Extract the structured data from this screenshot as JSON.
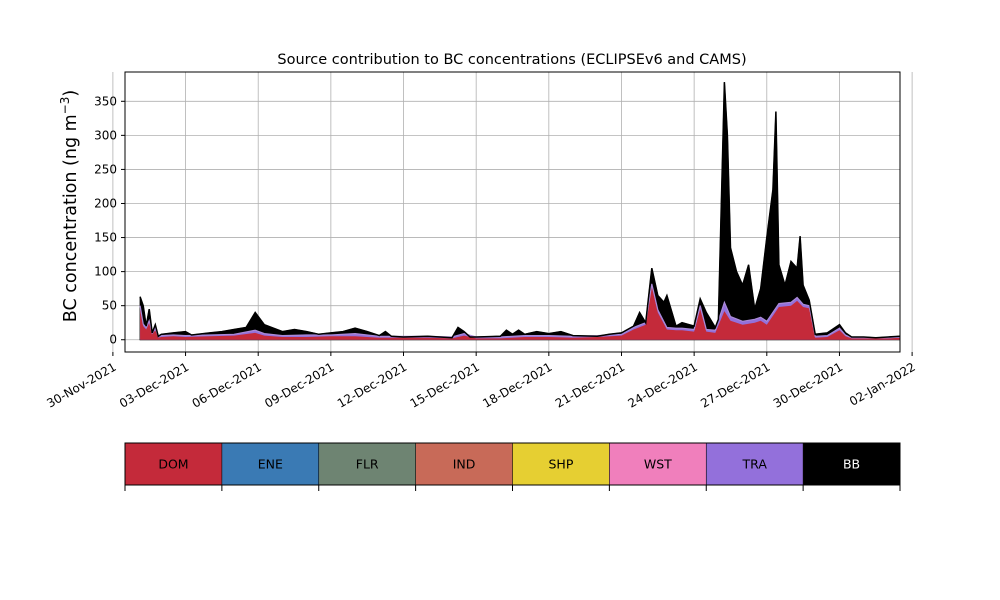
{
  "chart_data": {
    "type": "area",
    "stacked": true,
    "title": "Source contribution to BC concentrations (ECLIPSEv6 and CAMS)",
    "ylabel_main": "BC concentration (ng m",
    "ylabel_sup": "−3",
    "ylabel_close": ")",
    "ylim": [
      -18,
      393
    ],
    "yticks": [
      0,
      50,
      100,
      150,
      200,
      250,
      300,
      350
    ],
    "xlim": [
      "2021-11-30T12:00",
      "2022-01-01T12:00"
    ],
    "xticks": [
      "2021-11-30",
      "2021-12-03",
      "2021-12-06",
      "2021-12-09",
      "2021-12-12",
      "2021-12-15",
      "2021-12-18",
      "2021-12-21",
      "2021-12-24",
      "2021-12-27",
      "2021-12-30",
      "2022-01-02"
    ],
    "xtick_labels": [
      "30-Nov-2021",
      "03-Dec-2021",
      "06-Dec-2021",
      "09-Dec-2021",
      "12-Dec-2021",
      "15-Dec-2021",
      "18-Dec-2021",
      "21-Dec-2021",
      "24-Dec-2021",
      "27-Dec-2021",
      "30-Dec-2021",
      "02-Jan-2022"
    ],
    "grid": true,
    "series_colors": {
      "DOM": "#c42a3a",
      "TRA": "#9370db",
      "BB": "#000000"
    },
    "dom_points": [
      [
        "2021-12-01T03:00",
        45
      ],
      [
        "2021-12-01T06:00",
        20
      ],
      [
        "2021-12-01T09:00",
        15
      ],
      [
        "2021-12-01T12:00",
        25
      ],
      [
        "2021-12-01T15:00",
        8
      ],
      [
        "2021-12-01T18:00",
        14
      ],
      [
        "2021-12-01T21:00",
        3
      ],
      [
        "2021-12-02T00:00",
        4
      ],
      [
        "2021-12-02T12:00",
        5
      ],
      [
        "2021-12-03T00:00",
        4
      ],
      [
        "2021-12-04T00:00",
        5
      ],
      [
        "2021-12-05T00:00",
        6
      ],
      [
        "2021-12-05T21:00",
        10
      ],
      [
        "2021-12-06T06:00",
        6
      ],
      [
        "2021-12-07T00:00",
        4
      ],
      [
        "2021-12-08T00:00",
        4
      ],
      [
        "2021-12-09T00:00",
        5
      ],
      [
        "2021-12-10T00:00",
        5
      ],
      [
        "2021-12-11T00:00",
        3
      ],
      [
        "2021-12-12T00:00",
        3
      ],
      [
        "2021-12-13T00:00",
        3
      ],
      [
        "2021-12-14T00:00",
        2
      ],
      [
        "2021-12-14T12:00",
        6
      ],
      [
        "2021-12-15T00:00",
        2
      ],
      [
        "2021-12-16T00:00",
        2
      ],
      [
        "2021-12-17T00:00",
        4
      ],
      [
        "2021-12-18T00:00",
        4
      ],
      [
        "2021-12-19T00:00",
        3
      ],
      [
        "2021-12-20T00:00",
        4
      ],
      [
        "2021-12-21T00:00",
        6
      ],
      [
        "2021-12-21T12:00",
        15
      ],
      [
        "2021-12-22T00:00",
        22
      ],
      [
        "2021-12-22T06:00",
        78
      ],
      [
        "2021-12-22T12:00",
        40
      ],
      [
        "2021-12-22T21:00",
        15
      ],
      [
        "2021-12-23T06:00",
        14
      ],
      [
        "2021-12-23T12:00",
        14
      ],
      [
        "2021-12-24T00:00",
        12
      ],
      [
        "2021-12-24T06:00",
        45
      ],
      [
        "2021-12-24T12:00",
        12
      ],
      [
        "2021-12-24T21:00",
        10
      ],
      [
        "2021-12-25T06:00",
        42
      ],
      [
        "2021-12-25T12:00",
        28
      ],
      [
        "2021-12-26T00:00",
        22
      ],
      [
        "2021-12-26T12:00",
        25
      ],
      [
        "2021-12-26T18:00",
        28
      ],
      [
        "2021-12-27T00:00",
        22
      ],
      [
        "2021-12-27T12:00",
        48
      ],
      [
        "2021-12-28T00:00",
        50
      ],
      [
        "2021-12-28T06:00",
        57
      ],
      [
        "2021-12-28T12:00",
        48
      ],
      [
        "2021-12-28T18:00",
        46
      ],
      [
        "2021-12-29T00:00",
        3
      ],
      [
        "2021-12-29T12:00",
        4
      ],
      [
        "2021-12-30T00:00",
        14
      ],
      [
        "2021-12-30T06:00",
        5
      ],
      [
        "2021-12-30T12:00",
        2
      ],
      [
        "2021-12-31T00:00",
        2
      ],
      [
        "2022-01-01T00:00",
        2
      ],
      [
        "2022-01-01T12:00",
        3
      ],
      [
        "2022-01-02T00:00",
        3
      ]
    ],
    "tra_points": [
      [
        "2021-12-01T03:00",
        50
      ],
      [
        "2021-12-01T06:00",
        23
      ],
      [
        "2021-12-01T09:00",
        18
      ],
      [
        "2021-12-01T12:00",
        28
      ],
      [
        "2021-12-01T15:00",
        10
      ],
      [
        "2021-12-01T18:00",
        17
      ],
      [
        "2021-12-01T21:00",
        5
      ],
      [
        "2021-12-02T00:00",
        6
      ],
      [
        "2021-12-02T12:00",
        7
      ],
      [
        "2021-12-03T00:00",
        6
      ],
      [
        "2021-12-04T00:00",
        7
      ],
      [
        "2021-12-05T00:00",
        8
      ],
      [
        "2021-12-05T21:00",
        14
      ],
      [
        "2021-12-06T06:00",
        9
      ],
      [
        "2021-12-07T00:00",
        6
      ],
      [
        "2021-12-08T00:00",
        7
      ],
      [
        "2021-12-09T00:00",
        7
      ],
      [
        "2021-12-10T00:00",
        9
      ],
      [
        "2021-12-11T00:00",
        5
      ],
      [
        "2021-12-12T00:00",
        5
      ],
      [
        "2021-12-13T00:00",
        5
      ],
      [
        "2021-12-14T00:00",
        4
      ],
      [
        "2021-12-14T12:00",
        9
      ],
      [
        "2021-12-15T00:00",
        4
      ],
      [
        "2021-12-16T00:00",
        4
      ],
      [
        "2021-12-17T00:00",
        6
      ],
      [
        "2021-12-18T00:00",
        6
      ],
      [
        "2021-12-19T00:00",
        5
      ],
      [
        "2021-12-20T00:00",
        6
      ],
      [
        "2021-12-21T00:00",
        8
      ],
      [
        "2021-12-21T12:00",
        18
      ],
      [
        "2021-12-22T00:00",
        25
      ],
      [
        "2021-12-22T06:00",
        82
      ],
      [
        "2021-12-22T12:00",
        44
      ],
      [
        "2021-12-22T21:00",
        18
      ],
      [
        "2021-12-23T06:00",
        17
      ],
      [
        "2021-12-23T12:00",
        17
      ],
      [
        "2021-12-24T00:00",
        15
      ],
      [
        "2021-12-24T06:00",
        50
      ],
      [
        "2021-12-24T12:00",
        15
      ],
      [
        "2021-12-24T21:00",
        14
      ],
      [
        "2021-12-25T06:00",
        55
      ],
      [
        "2021-12-25T12:00",
        34
      ],
      [
        "2021-12-26T00:00",
        27
      ],
      [
        "2021-12-26T12:00",
        30
      ],
      [
        "2021-12-26T18:00",
        33
      ],
      [
        "2021-12-27T00:00",
        27
      ],
      [
        "2021-12-27T12:00",
        53
      ],
      [
        "2021-12-28T00:00",
        55
      ],
      [
        "2021-12-28T06:00",
        62
      ],
      [
        "2021-12-28T12:00",
        52
      ],
      [
        "2021-12-28T18:00",
        50
      ],
      [
        "2021-12-29T00:00",
        5
      ],
      [
        "2021-12-29T12:00",
        6
      ],
      [
        "2021-12-30T00:00",
        17
      ],
      [
        "2021-12-30T06:00",
        7
      ],
      [
        "2021-12-30T12:00",
        3
      ],
      [
        "2021-12-31T00:00",
        3
      ],
      [
        "2022-01-01T00:00",
        3
      ],
      [
        "2022-01-01T12:00",
        4
      ],
      [
        "2022-01-02T00:00",
        4
      ]
    ],
    "total_points": [
      [
        "2021-12-01T03:00",
        63
      ],
      [
        "2021-12-01T06:00",
        50
      ],
      [
        "2021-12-01T09:00",
        20
      ],
      [
        "2021-12-01T12:00",
        45
      ],
      [
        "2021-12-01T15:00",
        10
      ],
      [
        "2021-12-01T18:00",
        22
      ],
      [
        "2021-12-01T21:00",
        5
      ],
      [
        "2021-12-02T00:00",
        8
      ],
      [
        "2021-12-02T12:00",
        10
      ],
      [
        "2021-12-03T00:00",
        12
      ],
      [
        "2021-12-03T06:00",
        7
      ],
      [
        "2021-12-04T00:00",
        10
      ],
      [
        "2021-12-04T12:00",
        12
      ],
      [
        "2021-12-05T00:00",
        15
      ],
      [
        "2021-12-05T12:00",
        18
      ],
      [
        "2021-12-05T21:00",
        40
      ],
      [
        "2021-12-06T06:00",
        22
      ],
      [
        "2021-12-07T00:00",
        12
      ],
      [
        "2021-12-07T12:00",
        15
      ],
      [
        "2021-12-08T00:00",
        12
      ],
      [
        "2021-12-08T12:00",
        8
      ],
      [
        "2021-12-09T00:00",
        10
      ],
      [
        "2021-12-09T12:00",
        12
      ],
      [
        "2021-12-10T00:00",
        17
      ],
      [
        "2021-12-10T12:00",
        12
      ],
      [
        "2021-12-11T00:00",
        6
      ],
      [
        "2021-12-11T06:00",
        12
      ],
      [
        "2021-12-11T12:00",
        5
      ],
      [
        "2021-12-12T00:00",
        4
      ],
      [
        "2021-12-13T00:00",
        5
      ],
      [
        "2021-12-13T12:00",
        4
      ],
      [
        "2021-12-14T00:00",
        3
      ],
      [
        "2021-12-14T06:00",
        18
      ],
      [
        "2021-12-14T12:00",
        12
      ],
      [
        "2021-12-14T18:00",
        4
      ],
      [
        "2021-12-15T00:00",
        4
      ],
      [
        "2021-12-16T00:00",
        5
      ],
      [
        "2021-12-16T06:00",
        14
      ],
      [
        "2021-12-16T12:00",
        8
      ],
      [
        "2021-12-16T18:00",
        14
      ],
      [
        "2021-12-17T00:00",
        8
      ],
      [
        "2021-12-17T12:00",
        12
      ],
      [
        "2021-12-18T00:00",
        9
      ],
      [
        "2021-12-18T12:00",
        12
      ],
      [
        "2021-12-19T00:00",
        6
      ],
      [
        "2021-12-20T00:00",
        5
      ],
      [
        "2021-12-20T12:00",
        8
      ],
      [
        "2021-12-21T00:00",
        10
      ],
      [
        "2021-12-21T12:00",
        20
      ],
      [
        "2021-12-21T18:00",
        40
      ],
      [
        "2021-12-22T00:00",
        25
      ],
      [
        "2021-12-22T06:00",
        105
      ],
      [
        "2021-12-22T12:00",
        65
      ],
      [
        "2021-12-22T18:00",
        55
      ],
      [
        "2021-12-22T21:00",
        65
      ],
      [
        "2021-12-23T06:00",
        20
      ],
      [
        "2021-12-23T12:00",
        25
      ],
      [
        "2021-12-24T00:00",
        20
      ],
      [
        "2021-12-24T06:00",
        60
      ],
      [
        "2021-12-24T12:00",
        40
      ],
      [
        "2021-12-24T21:00",
        18
      ],
      [
        "2021-12-25T00:00",
        30
      ],
      [
        "2021-12-25T06:00",
        378
      ],
      [
        "2021-12-25T09:00",
        300
      ],
      [
        "2021-12-25T12:00",
        135
      ],
      [
        "2021-12-25T18:00",
        100
      ],
      [
        "2021-12-26T00:00",
        80
      ],
      [
        "2021-12-26T06:00",
        110
      ],
      [
        "2021-12-26T12:00",
        45
      ],
      [
        "2021-12-26T18:00",
        75
      ],
      [
        "2021-12-27T00:00",
        150
      ],
      [
        "2021-12-27T06:00",
        220
      ],
      [
        "2021-12-27T09:00",
        335
      ],
      [
        "2021-12-27T12:00",
        110
      ],
      [
        "2021-12-27T18:00",
        80
      ],
      [
        "2021-12-28T00:00",
        115
      ],
      [
        "2021-12-28T06:00",
        105
      ],
      [
        "2021-12-28T09:00",
        152
      ],
      [
        "2021-12-28T12:00",
        80
      ],
      [
        "2021-12-28T18:00",
        58
      ],
      [
        "2021-12-29T00:00",
        8
      ],
      [
        "2021-12-29T12:00",
        10
      ],
      [
        "2021-12-30T00:00",
        22
      ],
      [
        "2021-12-30T06:00",
        10
      ],
      [
        "2021-12-30T12:00",
        4
      ],
      [
        "2021-12-31T00:00",
        4
      ],
      [
        "2021-12-31T12:00",
        3
      ],
      [
        "2022-01-01T00:00",
        4
      ],
      [
        "2022-01-01T12:00",
        5
      ],
      [
        "2022-01-02T00:00",
        5
      ]
    ]
  },
  "legend": [
    {
      "label": "DOM",
      "color": "#c42a3a",
      "text_color": "#000000"
    },
    {
      "label": "ENE",
      "color": "#3a7ab4",
      "text_color": "#000000"
    },
    {
      "label": "FLR",
      "color": "#6e8472",
      "text_color": "#000000"
    },
    {
      "label": "IND",
      "color": "#c86a58",
      "text_color": "#000000"
    },
    {
      "label": "SHP",
      "color": "#e6cf32",
      "text_color": "#000000"
    },
    {
      "label": "WST",
      "color": "#f07fbc",
      "text_color": "#000000"
    },
    {
      "label": "TRA",
      "color": "#9370db",
      "text_color": "#000000"
    },
    {
      "label": "BB",
      "color": "#000000",
      "text_color": "#ffffff"
    }
  ]
}
